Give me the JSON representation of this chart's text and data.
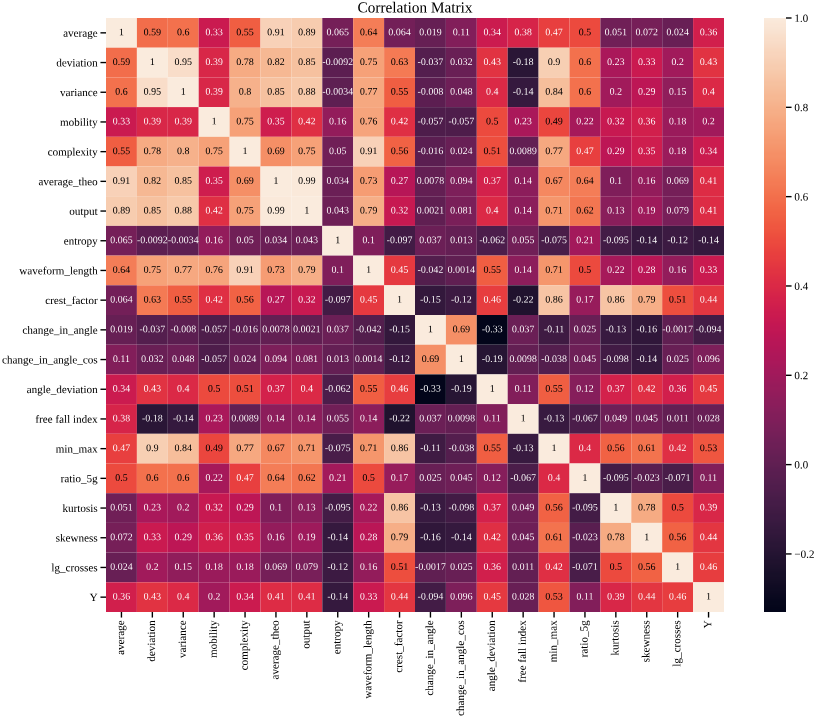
{
  "chart_data": {
    "type": "heatmap",
    "title": "Correlation Matrix",
    "categories": [
      "average",
      "deviation",
      "variance",
      "mobility",
      "complexity",
      "average_theo",
      "output",
      "entropy",
      "waveform_length",
      "crest_factor",
      "change_in_angle",
      "change_in_angle_cos",
      "angle_deviation",
      "free fall index",
      "min_max",
      "ratio_5g",
      "kurtosis",
      "skewness",
      "lg_crosses",
      "Y"
    ],
    "y_categories": [
      "average",
      "deviation",
      "variance",
      "mobility",
      "complexity",
      "average_theo",
      "output",
      "entropy",
      "waveform_length",
      "crest_factor",
      "change_in_angle",
      "change_in_angle_cos",
      "angle_deviation",
      "free fall index",
      "min_max",
      "ratio_5g",
      "kurtosis",
      "skewness",
      "lg_crosses",
      "Y"
    ],
    "cells": [
      [
        1,
        0.59,
        0.6,
        0.33,
        0.55,
        0.91,
        0.89,
        0.065,
        0.64,
        0.064,
        0.019,
        0.11,
        0.34,
        0.38,
        0.47,
        0.5,
        0.051,
        0.072,
        0.024,
        0.36
      ],
      [
        0.59,
        1,
        0.95,
        0.39,
        0.78,
        0.82,
        0.85,
        -0.0092,
        0.75,
        0.63,
        -0.037,
        0.032,
        0.43,
        -0.18,
        0.9,
        0.6,
        0.23,
        0.33,
        0.2,
        0.43
      ],
      [
        0.6,
        0.95,
        1,
        0.39,
        0.8,
        0.85,
        0.88,
        -0.0034,
        0.77,
        0.55,
        -0.008,
        0.048,
        0.4,
        -0.14,
        0.84,
        0.6,
        0.2,
        0.29,
        0.15,
        0.4
      ],
      [
        0.33,
        0.39,
        0.39,
        1,
        0.75,
        0.35,
        0.42,
        0.16,
        0.76,
        0.42,
        -0.057,
        -0.057,
        0.5,
        0.23,
        0.49,
        0.22,
        0.32,
        0.36,
        0.18,
        0.2
      ],
      [
        0.55,
        0.78,
        0.8,
        0.75,
        1,
        0.69,
        0.75,
        0.05,
        0.91,
        0.56,
        -0.016,
        0.024,
        0.51,
        0.0089,
        0.77,
        0.47,
        0.29,
        0.35,
        0.18,
        0.34
      ],
      [
        0.91,
        0.82,
        0.85,
        0.35,
        0.69,
        1,
        0.99,
        0.034,
        0.73,
        0.27,
        0.0078,
        0.094,
        0.37,
        0.14,
        0.67,
        0.64,
        0.1,
        0.16,
        0.069,
        0.41
      ],
      [
        0.89,
        0.85,
        0.88,
        0.42,
        0.75,
        0.99,
        1,
        0.043,
        0.79,
        0.32,
        0.0021,
        0.081,
        0.4,
        0.14,
        0.71,
        0.62,
        0.13,
        0.19,
        0.079,
        0.41
      ],
      [
        0.065,
        -0.0092,
        -0.0034,
        0.16,
        0.05,
        0.034,
        0.043,
        1,
        0.1,
        -0.097,
        0.037,
        0.013,
        -0.062,
        0.055,
        -0.075,
        0.21,
        -0.095,
        -0.14,
        -0.12,
        -0.14
      ],
      [
        0.64,
        0.75,
        0.77,
        0.76,
        0.91,
        0.73,
        0.79,
        0.1,
        1,
        0.45,
        -0.042,
        0.0014,
        0.55,
        0.14,
        0.71,
        0.5,
        0.22,
        0.28,
        0.16,
        0.33
      ],
      [
        0.064,
        0.63,
        0.55,
        0.42,
        0.56,
        0.27,
        0.32,
        -0.097,
        0.45,
        1,
        -0.15,
        -0.12,
        0.46,
        -0.22,
        0.86,
        0.17,
        0.86,
        0.79,
        0.51,
        0.44
      ],
      [
        0.019,
        -0.037,
        -0.008,
        -0.057,
        -0.016,
        0.0078,
        0.0021,
        0.037,
        -0.042,
        -0.15,
        1,
        0.69,
        -0.33,
        0.037,
        -0.11,
        0.025,
        -0.13,
        -0.16,
        -0.0017,
        -0.094
      ],
      [
        0.11,
        0.032,
        0.048,
        -0.057,
        0.024,
        0.094,
        0.081,
        0.013,
        0.0014,
        -0.12,
        0.69,
        1,
        -0.19,
        0.0098,
        -0.038,
        0.045,
        -0.098,
        -0.14,
        0.025,
        0.096
      ],
      [
        0.34,
        0.43,
        0.4,
        0.5,
        0.51,
        0.37,
        0.4,
        -0.062,
        0.55,
        0.46,
        -0.33,
        -0.19,
        1,
        0.11,
        0.55,
        0.12,
        0.37,
        0.42,
        0.36,
        0.45
      ],
      [
        0.38,
        -0.18,
        -0.14,
        0.23,
        0.0089,
        0.14,
        0.14,
        0.055,
        0.14,
        -0.22,
        0.037,
        0.0098,
        0.11,
        1,
        -0.13,
        -0.067,
        0.049,
        0.045,
        0.011,
        0.028
      ],
      [
        0.47,
        0.9,
        0.84,
        0.49,
        0.77,
        0.67,
        0.71,
        -0.075,
        0.71,
        0.86,
        -0.11,
        -0.038,
        0.55,
        -0.13,
        1,
        0.4,
        0.56,
        0.61,
        0.42,
        0.53
      ],
      [
        0.5,
        0.6,
        0.6,
        0.22,
        0.47,
        0.64,
        0.62,
        0.21,
        0.5,
        0.17,
        0.025,
        0.045,
        0.12,
        -0.067,
        0.4,
        1,
        -0.095,
        -0.023,
        -0.071,
        0.11
      ],
      [
        0.051,
        0.23,
        0.2,
        0.32,
        0.29,
        0.1,
        0.13,
        -0.095,
        0.22,
        0.86,
        -0.13,
        -0.098,
        0.37,
        0.049,
        0.56,
        -0.095,
        1,
        0.78,
        0.5,
        0.39
      ],
      [
        0.072,
        0.33,
        0.29,
        0.36,
        0.35,
        0.16,
        0.19,
        -0.14,
        0.28,
        0.79,
        -0.16,
        -0.14,
        0.42,
        0.045,
        0.61,
        -0.023,
        0.78,
        1,
        0.56,
        0.44
      ],
      [
        0.024,
        0.2,
        0.15,
        0.18,
        0.18,
        0.069,
        0.079,
        -0.12,
        0.16,
        0.51,
        -0.0017,
        0.025,
        0.36,
        0.011,
        0.42,
        -0.071,
        0.5,
        0.56,
        1,
        0.46
      ],
      [
        0.36,
        0.43,
        0.4,
        0.2,
        0.34,
        0.41,
        0.41,
        -0.14,
        0.33,
        0.44,
        -0.094,
        0.096,
        0.45,
        0.028,
        0.53,
        0.11,
        0.39,
        0.44,
        0.46,
        1
      ]
    ],
    "clim": [
      -0.33,
      1
    ],
    "cticks": [
      {
        "value": -0.2,
        "label": "−0.2"
      },
      {
        "value": 0,
        "label": "0.0"
      },
      {
        "value": 0.2,
        "label": "0.2"
      },
      {
        "value": 0.4,
        "label": "0.4"
      },
      {
        "value": 0.6,
        "label": "0.6"
      },
      {
        "value": 0.8,
        "label": "0.8"
      },
      {
        "value": 1,
        "label": "1.0"
      }
    ],
    "data_labels": true
  }
}
